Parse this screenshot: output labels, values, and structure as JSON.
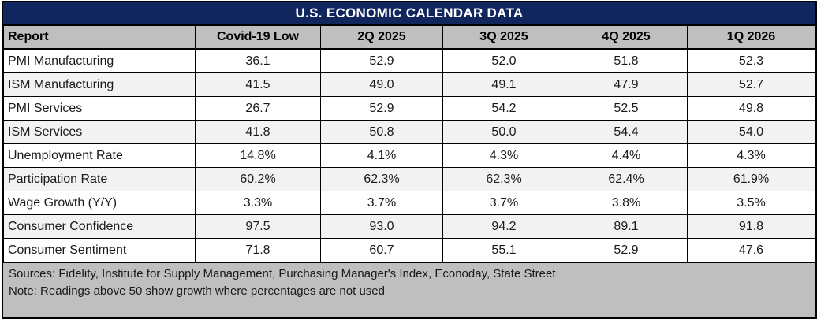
{
  "title": "U.S. ECONOMIC CALENDAR DATA",
  "colors": {
    "title_bg": "#12265E",
    "title_text": "#FFFFFF",
    "header_bg": "#BFBFBF",
    "row_alt_bg": "#F2F2F2",
    "footer_bg": "#BFBFBF",
    "border": "#000000"
  },
  "table": {
    "columns": [
      "Report",
      "Covid-19 Low",
      "2Q 2025",
      "3Q 2025",
      "4Q 2025",
      "1Q 2026"
    ],
    "rows": [
      {
        "report": "PMI Manufacturing",
        "values": [
          "36.1",
          "52.9",
          "52.0",
          "51.8",
          "52.3"
        ]
      },
      {
        "report": "ISM Manufacturing",
        "values": [
          "41.5",
          "49.0",
          "49.1",
          "47.9",
          "52.7"
        ]
      },
      {
        "report": "PMI Services",
        "values": [
          "26.7",
          "52.9",
          "54.2",
          "52.5",
          "49.8"
        ]
      },
      {
        "report": "ISM Services",
        "values": [
          "41.8",
          "50.8",
          "50.0",
          "54.4",
          "54.0"
        ]
      },
      {
        "report": "Unemployment Rate",
        "values": [
          "14.8%",
          "4.1%",
          "4.3%",
          "4.4%",
          "4.3%"
        ]
      },
      {
        "report": "Participation Rate",
        "values": [
          "60.2%",
          "62.3%",
          "62.3%",
          "62.4%",
          "61.9%"
        ]
      },
      {
        "report": "Wage Growth (Y/Y)",
        "values": [
          "3.3%",
          "3.7%",
          "3.7%",
          "3.8%",
          "3.5%"
        ]
      },
      {
        "report": "Consumer Confidence",
        "values": [
          "97.5",
          "93.0",
          "94.2",
          "89.1",
          "91.8"
        ]
      },
      {
        "report": "Consumer Sentiment",
        "values": [
          "71.8",
          "60.7",
          "55.1",
          "52.9",
          "47.6"
        ]
      }
    ]
  },
  "footer": {
    "sources": "Sources: Fidelity, Institute for Supply Management, Purchasing Manager's Index, Econoday, State Street",
    "note": "Note: Readings above 50 show growth where percentages are not used"
  },
  "chart_data": {
    "type": "table",
    "title": "U.S. ECONOMIC CALENDAR DATA",
    "columns": [
      "Report",
      "Covid-19 Low",
      "2Q 2025",
      "3Q 2025",
      "4Q 2025",
      "1Q 2026"
    ],
    "rows": [
      [
        "PMI Manufacturing",
        "36.1",
        "52.9",
        "52.0",
        "51.8",
        "52.3"
      ],
      [
        "ISM Manufacturing",
        "41.5",
        "49.0",
        "49.1",
        "47.9",
        "52.7"
      ],
      [
        "PMI Services",
        "26.7",
        "52.9",
        "54.2",
        "52.5",
        "49.8"
      ],
      [
        "ISM Services",
        "41.8",
        "50.8",
        "50.0",
        "54.4",
        "54.0"
      ],
      [
        "Unemployment Rate",
        "14.8%",
        "4.1%",
        "4.3%",
        "4.4%",
        "4.3%"
      ],
      [
        "Participation Rate",
        "60.2%",
        "62.3%",
        "62.3%",
        "62.4%",
        "61.9%"
      ],
      [
        "Wage Growth (Y/Y)",
        "3.3%",
        "3.7%",
        "3.7%",
        "3.8%",
        "3.5%"
      ],
      [
        "Consumer Confidence",
        "97.5",
        "93.0",
        "94.2",
        "89.1",
        "91.8"
      ],
      [
        "Consumer Sentiment",
        "71.8",
        "60.7",
        "55.1",
        "52.9",
        "47.6"
      ]
    ],
    "notes": [
      "Sources: Fidelity, Institute for Supply Management, Purchasing Manager's Index, Econoday, State Street",
      "Note: Readings above 50 show growth where percentages are not used"
    ]
  }
}
